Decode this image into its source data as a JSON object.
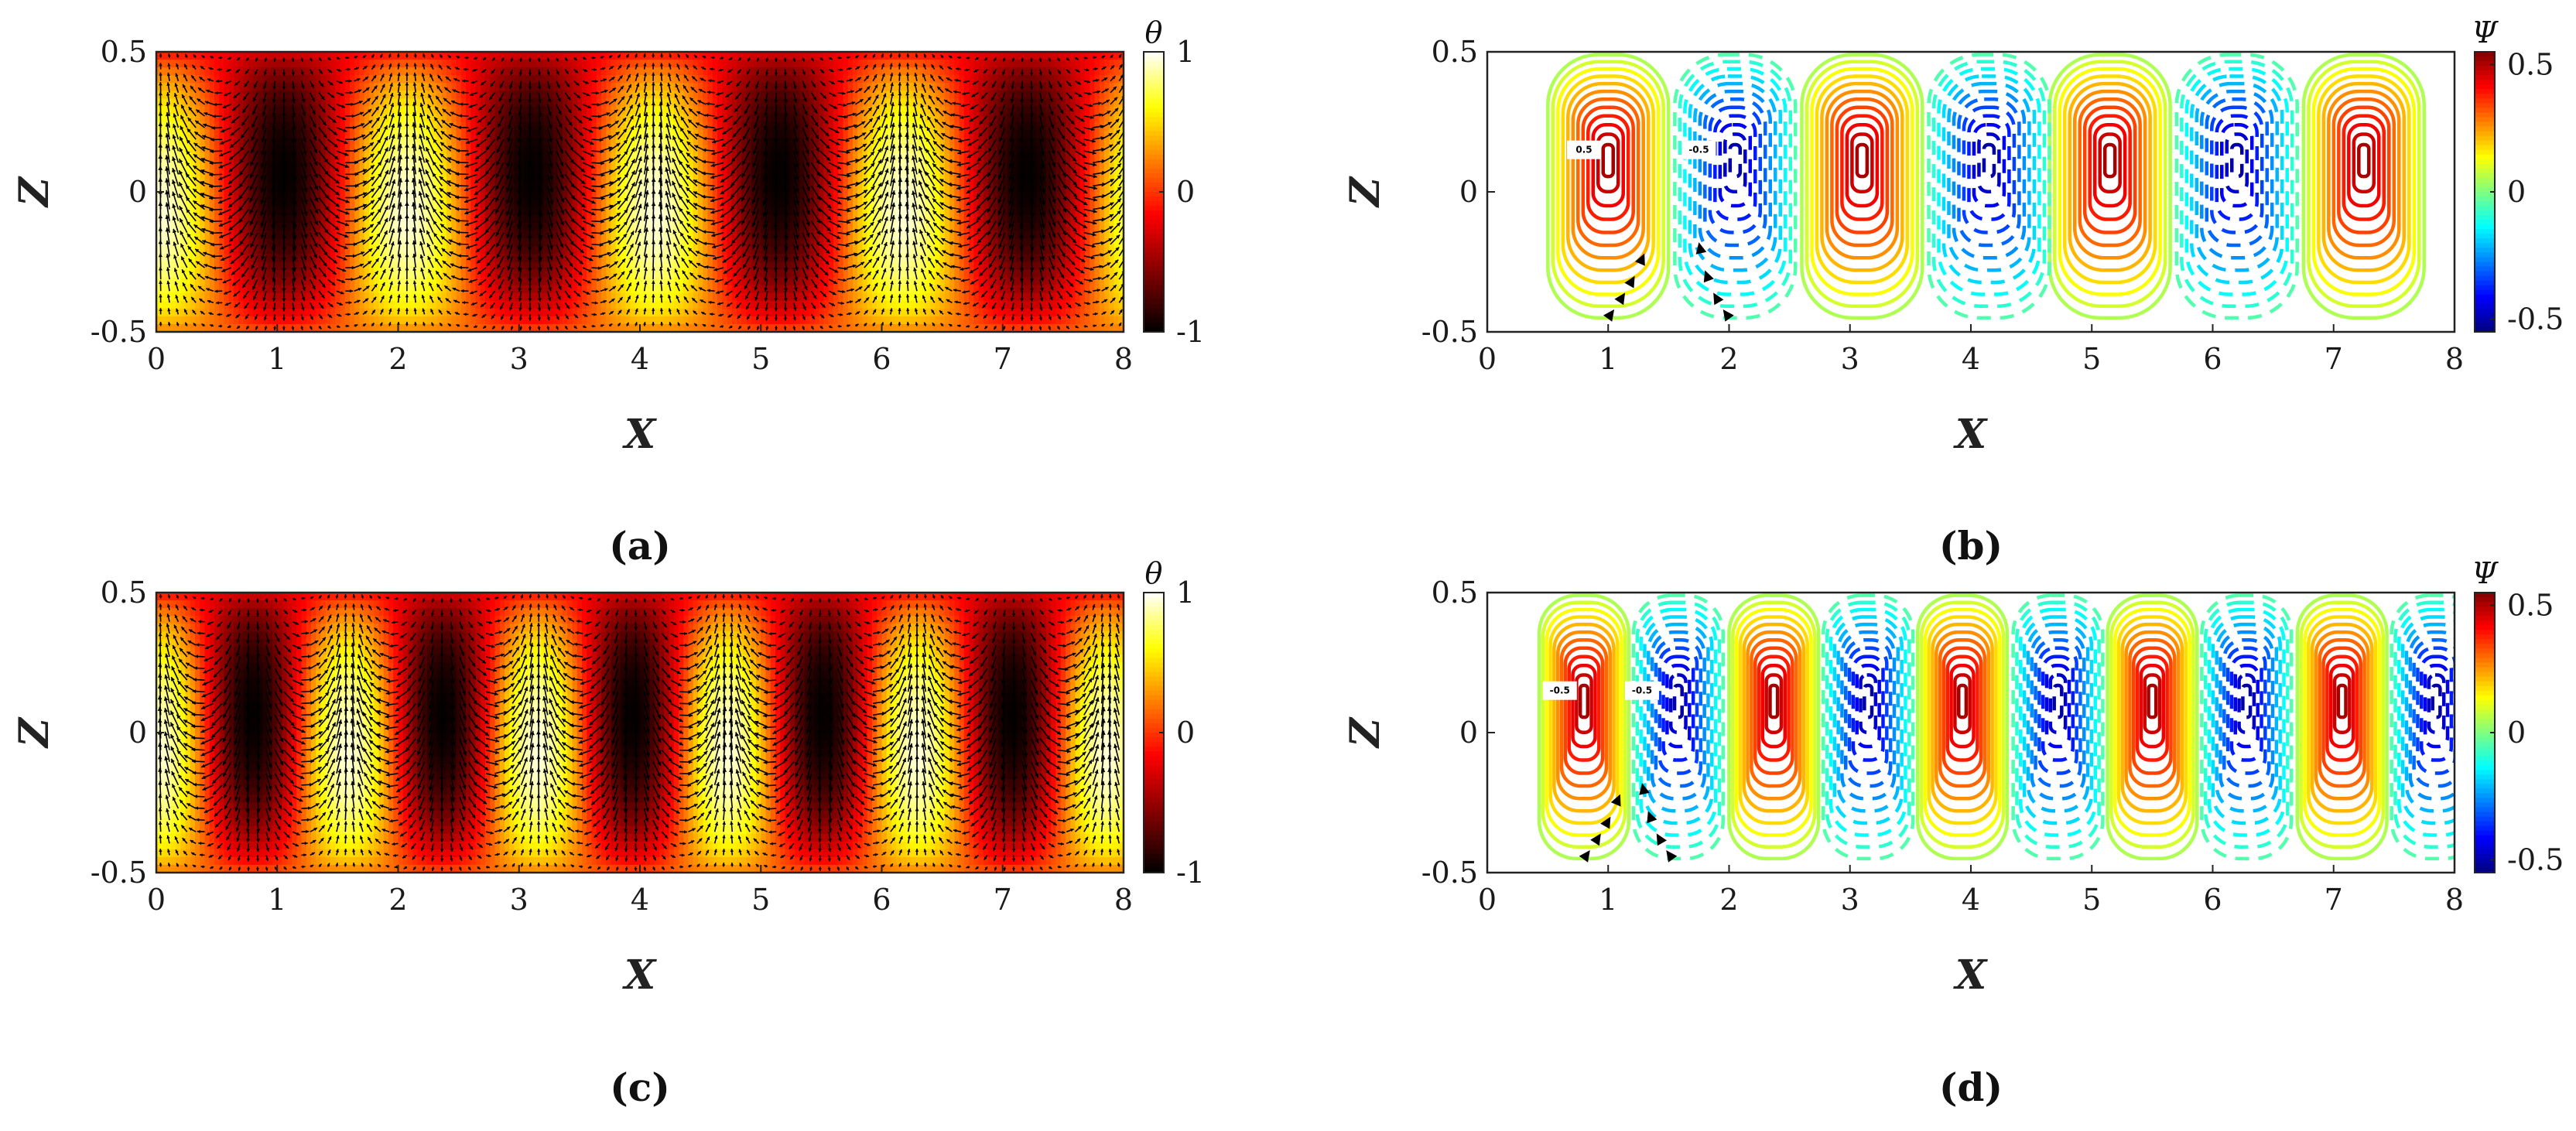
{
  "chart_data": [
    {
      "panel": "(a)",
      "type": "heatmap",
      "field": "temperature with velocity vectors",
      "xlabel": "X",
      "ylabel": "Z",
      "xlim": [
        0,
        8
      ],
      "ylim": [
        -0.5,
        0.5
      ],
      "xticks": [
        "0",
        "1",
        "2",
        "3",
        "4",
        "5",
        "6",
        "7",
        "8"
      ],
      "yticks": [
        "0.5",
        "0",
        "-0.5"
      ],
      "colorbar": {
        "label": "θ",
        "range": [
          -1,
          1
        ],
        "ticks": [
          "1",
          "0",
          "-1"
        ],
        "colormap": "hot"
      },
      "cold_plume_centers_x": [
        1.05,
        3.1,
        5.15,
        7.2
      ],
      "period_x": 2.05,
      "arrows": true
    },
    {
      "panel": "(b)",
      "type": "contour",
      "field": "stream function",
      "xlabel": "X",
      "ylabel": "Z",
      "xlim": [
        0,
        8
      ],
      "ylim": [
        -0.5,
        0.5
      ],
      "xticks": [
        "0",
        "1",
        "2",
        "3",
        "4",
        "5",
        "6",
        "7",
        "8"
      ],
      "yticks": [
        "0.5",
        "0",
        "-0.5"
      ],
      "colorbar": {
        "label": "Ψ",
        "range": [
          -0.55,
          0.55
        ],
        "ticks": [
          "0.5",
          "0",
          "-0.5"
        ],
        "colormap": "jet"
      },
      "positive_cell_centers_x": [
        1.0,
        3.1,
        5.15,
        7.25
      ],
      "negative_cell_centers_x": [
        2.05,
        4.15,
        6.2
      ],
      "contour_labels": [
        "0.5",
        "-0.5"
      ],
      "positive_style": "solid",
      "negative_style": "dashed"
    },
    {
      "panel": "(c)",
      "type": "heatmap",
      "field": "temperature with velocity vectors",
      "xlabel": "X",
      "ylabel": "Z",
      "xlim": [
        0,
        8
      ],
      "ylim": [
        -0.5,
        0.5
      ],
      "xticks": [
        "0",
        "1",
        "2",
        "3",
        "4",
        "5",
        "6",
        "7",
        "8"
      ],
      "yticks": [
        "0.5",
        "0",
        "-0.5"
      ],
      "colorbar": {
        "label": "θ",
        "range": [
          -1,
          1
        ],
        "ticks": [
          "1",
          "0",
          "-1"
        ],
        "colormap": "hot"
      },
      "cold_plume_centers_x": [
        0.8,
        2.37,
        3.93,
        5.5,
        7.07
      ],
      "period_x": 1.57,
      "arrows": true
    },
    {
      "panel": "(d)",
      "type": "contour",
      "field": "stream function",
      "xlabel": "X",
      "ylabel": "Z",
      "xlim": [
        0,
        8
      ],
      "ylim": [
        -0.5,
        0.5
      ],
      "xticks": [
        "0",
        "1",
        "2",
        "3",
        "4",
        "5",
        "6",
        "7",
        "8"
      ],
      "yticks": [
        "0.5",
        "0",
        "-0.5"
      ],
      "colorbar": {
        "label": "Ψ",
        "range": [
          -0.55,
          0.55
        ],
        "ticks": [
          "0.5",
          "0",
          "-0.5"
        ],
        "colormap": "jet"
      },
      "positive_cell_centers_x": [
        0.8,
        2.37,
        3.93,
        5.5,
        7.07
      ],
      "negative_cell_centers_x": [
        1.58,
        3.15,
        4.72,
        6.28,
        7.85
      ],
      "contour_labels": [
        "-0.5",
        "-0.5"
      ],
      "positive_style": "solid",
      "negative_style": "dashed"
    }
  ]
}
